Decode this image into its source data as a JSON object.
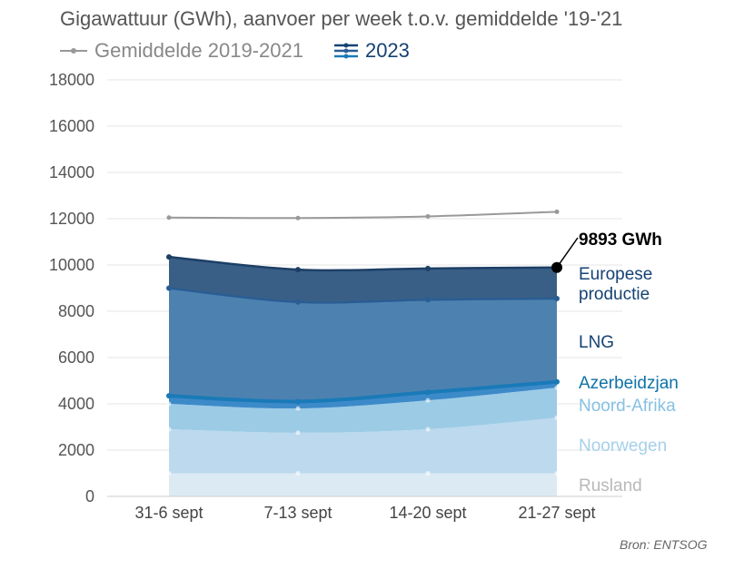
{
  "title": "Gigawattuur (GWh), aanvoer per week t.o.v. gemiddelde '19-'21",
  "legend": {
    "average": "Gemiddelde 2019-2021",
    "current": "2023"
  },
  "source": "Bron: ENTSOG",
  "chart_data": {
    "type": "area",
    "categories": [
      "31-6 sept",
      "7-13 sept",
      "14-20 sept",
      "21-27 sept"
    ],
    "ylim": [
      0,
      18000
    ],
    "yticks": [
      0,
      2000,
      4000,
      6000,
      8000,
      10000,
      12000,
      14000,
      16000,
      18000
    ],
    "grid": true,
    "stacked": true,
    "series": [
      {
        "name": "Rusland",
        "values": [
          1000,
          1000,
          1000,
          1000
        ],
        "color": "#dceaf4"
      },
      {
        "name": "Noorwegen",
        "values": [
          1900,
          1750,
          1900,
          2400
        ],
        "color": "#bcd9ee"
      },
      {
        "name": "Noord-Afrika",
        "values": [
          1100,
          1050,
          1250,
          1300
        ],
        "color": "#9ccbe6"
      },
      {
        "name": "Azerbeidzjan",
        "values": [
          350,
          300,
          350,
          250
        ],
        "color": "#3d8ac9"
      },
      {
        "name": "LNG",
        "values": [
          4650,
          4300,
          4000,
          3600
        ],
        "color": "#4d82b0"
      },
      {
        "name": "Europese productie",
        "values": [
          1350,
          1400,
          1350,
          1343
        ],
        "color": "#3a5f86"
      }
    ],
    "series_label_colors": [
      "#b9b9b9",
      "#a6d0ea",
      "#86c1e3",
      "#0f72a8",
      "#154273",
      "#154273"
    ],
    "average": {
      "name": "Gemiddelde 2019-2021",
      "values": [
        12050,
        12030,
        12100,
        12300
      ],
      "color": "#999999"
    },
    "annotation": {
      "text": "9893 GWh",
      "value": 9893
    }
  }
}
